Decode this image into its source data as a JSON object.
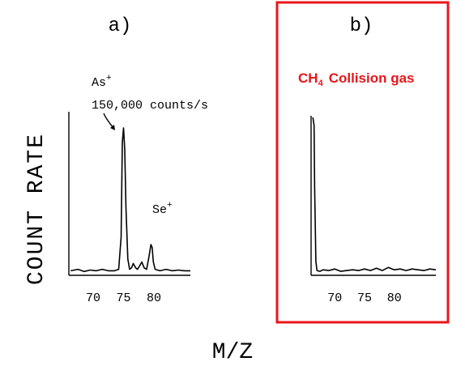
{
  "chart_data": [
    {
      "type": "line",
      "panel_label": "a)",
      "xticks": [
        70,
        75,
        80
      ],
      "xlim": [
        66,
        86
      ],
      "ylim": [
        0,
        1
      ],
      "annotations": {
        "as_ion": "As",
        "as_charge": "+",
        "counts": "150,000 counts/s",
        "se_ion": "Se",
        "se_charge": "+"
      },
      "series": [
        {
          "x": [
            66.3,
            67.5,
            68.5,
            69.5,
            70.5,
            71.5,
            72.5,
            73.5,
            74.2,
            74.6,
            74.8,
            75.0,
            75.2,
            75.4,
            75.7,
            76.0,
            76.3,
            76.6,
            77.0,
            77.3,
            77.6,
            78.0,
            78.4,
            78.8,
            79.2,
            79.5,
            79.7,
            79.9,
            80.2,
            80.6,
            81.0,
            82.0,
            83.0,
            84.0,
            85.0,
            86.0
          ],
          "values": [
            0.02,
            0.03,
            0.015,
            0.025,
            0.02,
            0.03,
            0.02,
            0.02,
            0.03,
            0.25,
            0.9,
            1.0,
            0.85,
            0.45,
            0.1,
            0.03,
            0.04,
            0.07,
            0.04,
            0.03,
            0.05,
            0.08,
            0.04,
            0.03,
            0.12,
            0.2,
            0.18,
            0.08,
            0.03,
            0.025,
            0.02,
            0.03,
            0.02,
            0.025,
            0.02,
            0.02
          ]
        }
      ]
    },
    {
      "type": "line",
      "panel_label": "b)",
      "title_prefix": "CH",
      "title_subscript": "4",
      "title_suffix": "Collision gas",
      "xticks": [
        70,
        75,
        80
      ],
      "xlim": [
        66,
        87
      ],
      "ylim": [
        0,
        1
      ],
      "series": [
        {
          "x": [
            66.3,
            66.5,
            66.6,
            66.8,
            67.0,
            67.5,
            68.0,
            69.0,
            70.0,
            71.0,
            72.0,
            73.0,
            74.0,
            75.0,
            76.0,
            77.0,
            78.0,
            79.0,
            80.0,
            81.0,
            82.0,
            83.0,
            84.0,
            85.0,
            86.0,
            87.0
          ],
          "values": [
            1.0,
            0.95,
            0.55,
            0.08,
            0.02,
            0.015,
            0.025,
            0.02,
            0.03,
            0.015,
            0.02,
            0.025,
            0.02,
            0.03,
            0.02,
            0.035,
            0.02,
            0.04,
            0.025,
            0.03,
            0.02,
            0.03,
            0.025,
            0.02,
            0.03,
            0.025
          ]
        }
      ]
    }
  ],
  "ylabel": "COUNT RATE",
  "xlabel": "M/Z",
  "colors": {
    "highlight_box": "#e8161b",
    "highlight_text": "#e8161b",
    "trace": "#000000"
  }
}
